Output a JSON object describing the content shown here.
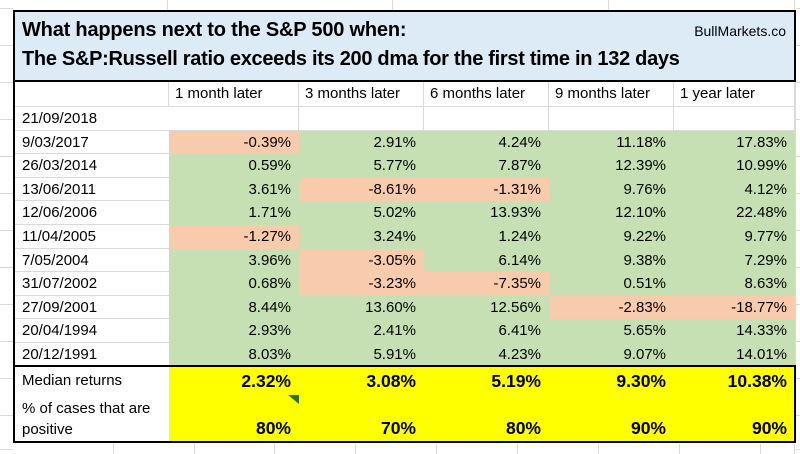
{
  "header": {
    "title_line1": "What happens next to the S&P 500 when:",
    "title_line2": "The S&P:Russell ratio exceeds its 200 dma for the first time in 132 days",
    "brand": "BullMarkets.co"
  },
  "table": {
    "corner_label": "",
    "columns": [
      "1 month later",
      "3 months later",
      "6 months later",
      "9 months later",
      "1 year later"
    ],
    "rows": [
      {
        "date": "21/09/2018",
        "values": [
          null,
          null,
          null,
          null,
          null
        ]
      },
      {
        "date": "9/03/2017",
        "values": [
          "-0.39%",
          "2.91%",
          "4.24%",
          "11.18%",
          "17.83%"
        ]
      },
      {
        "date": "26/03/2014",
        "values": [
          "0.59%",
          "5.77%",
          "7.87%",
          "12.39%",
          "10.99%"
        ]
      },
      {
        "date": "13/06/2011",
        "values": [
          "3.61%",
          "-8.61%",
          "-1.31%",
          "9.76%",
          "4.12%"
        ]
      },
      {
        "date": "12/06/2006",
        "values": [
          "1.71%",
          "5.02%",
          "13.93%",
          "12.10%",
          "22.48%"
        ]
      },
      {
        "date": "11/04/2005",
        "values": [
          "-1.27%",
          "3.24%",
          "1.24%",
          "9.22%",
          "9.77%"
        ]
      },
      {
        "date": "7/05/2004",
        "values": [
          "3.96%",
          "-3.05%",
          "6.14%",
          "9.38%",
          "7.29%"
        ]
      },
      {
        "date": "31/07/2002",
        "values": [
          "0.68%",
          "-3.23%",
          "-7.35%",
          "0.51%",
          "8.63%"
        ]
      },
      {
        "date": "27/09/2001",
        "values": [
          "8.44%",
          "13.60%",
          "12.56%",
          "-2.83%",
          "-18.77%"
        ]
      },
      {
        "date": "20/04/1994",
        "values": [
          "2.93%",
          "2.41%",
          "6.41%",
          "5.65%",
          "14.33%"
        ]
      },
      {
        "date": "20/12/1991",
        "values": [
          "8.03%",
          "5.91%",
          "4.23%",
          "9.07%",
          "14.01%"
        ]
      }
    ],
    "summary": [
      {
        "label": "Median returns",
        "values": [
          "2.32%",
          "3.08%",
          "5.19%",
          "9.30%",
          "10.38%"
        ]
      },
      {
        "label": "% of cases that are positive",
        "values": [
          "80%",
          "70%",
          "80%",
          "90%",
          "90%"
        ]
      }
    ]
  },
  "colors": {
    "positive_fill": "#c6e0b4",
    "negative_fill": "#f8cbad",
    "summary_fill": "#ffff00",
    "title_fill": "#ddebf7",
    "flag_triangle": "#2c6e2c"
  }
}
